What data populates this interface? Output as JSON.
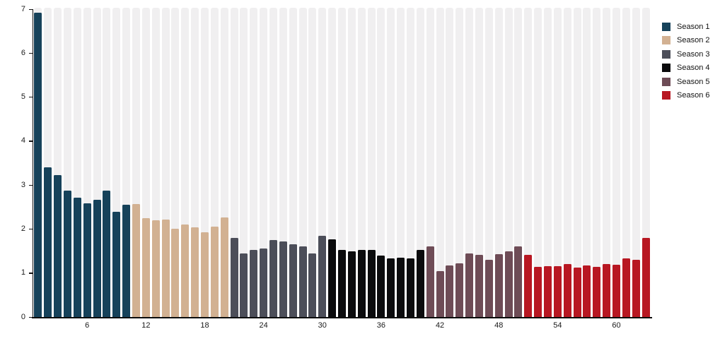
{
  "chart_data": {
    "type": "bar",
    "title": "",
    "xlabel": "",
    "ylabel": "",
    "ylim": [
      0,
      7
    ],
    "yticks": [
      0,
      1,
      2,
      3,
      4,
      5,
      6,
      7
    ],
    "xtick_episodes": [
      6,
      12,
      18,
      24,
      30,
      36,
      42,
      48,
      54,
      60
    ],
    "n_bars": 63,
    "grid": false,
    "background_stripes": true,
    "legend_position": "top-right",
    "series": [
      {
        "name": "Season 1",
        "color": "#16425a",
        "values": [
          6.92,
          3.41,
          3.22,
          2.88,
          2.71,
          2.58,
          2.67,
          2.88,
          2.39,
          2.55
        ]
      },
      {
        "name": "Season 2",
        "color": "#d2b192",
        "values": [
          2.57,
          2.24,
          2.2,
          2.21,
          2.01,
          2.11,
          2.04,
          1.92,
          2.06,
          2.27
        ]
      },
      {
        "name": "Season 3",
        "color": "#4c4e59",
        "values": [
          1.8,
          1.44,
          1.52,
          1.56,
          1.75,
          1.72,
          1.65,
          1.61,
          1.45,
          1.84
        ]
      },
      {
        "name": "Season 4",
        "color": "#0b0b0d",
        "values": [
          1.77,
          1.53,
          1.49,
          1.53,
          1.53,
          1.4,
          1.33,
          1.35,
          1.33,
          1.52
        ]
      },
      {
        "name": "Season 5",
        "color": "#6e4c56",
        "values": [
          1.6,
          1.04,
          1.18,
          1.22,
          1.45,
          1.41,
          1.3,
          1.43,
          1.5,
          1.6
        ]
      },
      {
        "name": "Season 6",
        "color": "#b81722",
        "values": [
          1.42,
          1.14,
          1.15,
          1.15,
          1.21,
          1.13,
          1.17,
          1.14,
          1.21,
          1.19,
          1.33,
          1.3,
          1.8
        ]
      }
    ]
  },
  "colors": {
    "background": "#ffffff",
    "stripe": "#f0eff0",
    "axis": "#0d0d0d",
    "tick_label": "#1a1a1a"
  }
}
